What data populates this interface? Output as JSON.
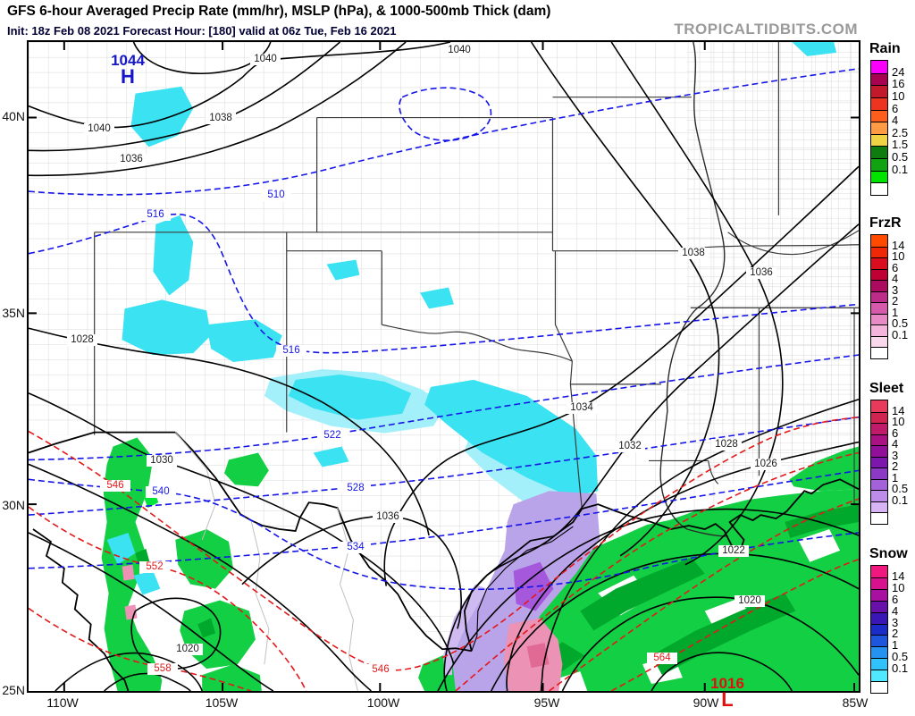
{
  "header": {
    "title": "GFS 6-hour Averaged Precip Rate (mm/hr), MSLP (hPa), & 1000-500mb Thick (dam)",
    "subtitle": "Init: 18z Feb 08 2021   Forecast Hour: [180]   valid at 06z Tue, Feb 16 2021",
    "watermark": "TROPICALTIDBITS.COM"
  },
  "axes": {
    "lat": [
      "40N",
      "35N",
      "30N",
      "25N"
    ],
    "lon": [
      "110W",
      "105W",
      "100W",
      "95W",
      "90W",
      "85W"
    ]
  },
  "pressure_centers": {
    "high": {
      "value": "1044",
      "letter": "H"
    },
    "low": {
      "value": "1016",
      "letter": "L"
    }
  },
  "map": {
    "contour_labels": {
      "mslp": [
        {
          "text": "1040"
        },
        {
          "text": "1040"
        },
        {
          "text": "1040"
        },
        {
          "text": "1038"
        },
        {
          "text": "1036"
        },
        {
          "text": "1038"
        },
        {
          "text": "1036"
        },
        {
          "text": "1028"
        },
        {
          "text": "1034"
        },
        {
          "text": "1032"
        },
        {
          "text": "1028"
        },
        {
          "text": "1026"
        },
        {
          "text": "1030"
        },
        {
          "text": "1036"
        },
        {
          "text": "1022"
        },
        {
          "text": "1020"
        },
        {
          "text": "1020"
        }
      ],
      "thickness_blue": [
        {
          "text": "510"
        },
        {
          "text": "516"
        },
        {
          "text": "516"
        },
        {
          "text": "522"
        },
        {
          "text": "528"
        },
        {
          "text": "534"
        },
        {
          "text": "540"
        }
      ],
      "thickness_red": [
        {
          "text": "546"
        },
        {
          "text": "552"
        },
        {
          "text": "558"
        },
        {
          "text": "546"
        },
        {
          "text": "564"
        }
      ]
    }
  },
  "legend": {
    "scales": [
      {
        "name": "Rain",
        "ticks": [
          "24",
          "16",
          "10",
          "6",
          "4",
          "2.5",
          "1.5",
          "0.5",
          "0.1"
        ],
        "colors": [
          "#FA00FA",
          "#A80350",
          "#C21A2C",
          "#EC3421",
          "#FD5E1C",
          "#FF9A45",
          "#F0D245",
          "#0E7C0E",
          "#12A312",
          "#00E400",
          "#FFFFFF"
        ]
      },
      {
        "name": "FrzR",
        "ticks": [
          "14",
          "10",
          "6",
          "4",
          "3",
          "2",
          "1",
          "0.5",
          "0.1"
        ],
        "colors": [
          "#FF4A00",
          "#F12807",
          "#DA0E1E",
          "#BE0035",
          "#AC0A5E",
          "#BE2C8A",
          "#D55AAC",
          "#E88AC6",
          "#F4B4DC",
          "#FAD8EB",
          "#FFFFFF"
        ]
      },
      {
        "name": "Sleet",
        "ticks": [
          "14",
          "10",
          "6",
          "4",
          "3",
          "2",
          "1",
          "0.5",
          "0.1"
        ],
        "colors": [
          "#E83A5A",
          "#D22450",
          "#C01A6B",
          "#AA1283",
          "#921099",
          "#7C16AC",
          "#8C3AC6",
          "#A462DA",
          "#BE8CEA",
          "#D8B4F4",
          "#FFFFFF"
        ]
      },
      {
        "name": "Snow",
        "ticks": [
          "14",
          "10",
          "6",
          "4",
          "3",
          "2",
          "1",
          "0.5",
          "0.1"
        ],
        "colors": [
          "#F0187E",
          "#D8118E",
          "#A810A2",
          "#6A10AA",
          "#3A16B6",
          "#1C2CC8",
          "#1E56DE",
          "#2592F2",
          "#30C2FC",
          "#50E8FF",
          "#FFFFFF"
        ]
      }
    ]
  },
  "colors": {
    "mslp_contour": "#000000",
    "thickness_cold": "#1515E8",
    "thickness_warm": "#E31919",
    "high_center": "#1616C8",
    "low_center": "#E01010",
    "snow_fill": "#3BE2F2",
    "sleet_fill": "#B9A3E9",
    "frzr_fill": "#EC92B4",
    "rain_fill": "#13CF43"
  }
}
